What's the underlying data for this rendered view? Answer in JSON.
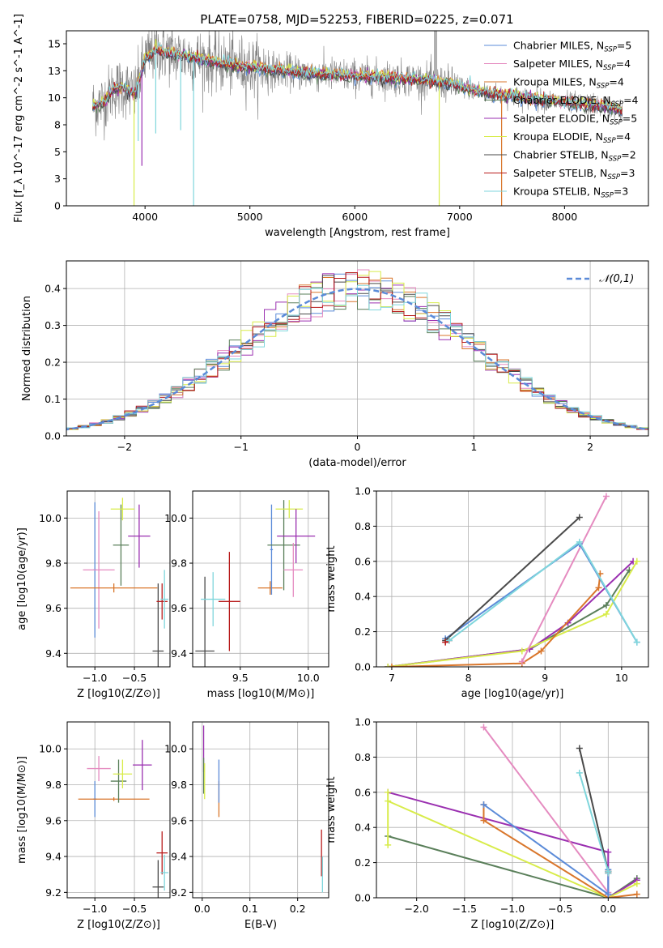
{
  "figure": {
    "title": "PLATE=0758, MJD=52253, FIBERID=0225, z=0.071"
  },
  "colors": {
    "Chabrier MILES": "#5b8bd8",
    "Salpeter MILES": "#e58bc0",
    "Kroupa MILES": "#d9762b",
    "Chabrier ELODIE": "#5a7f5a",
    "Salpeter ELODIE": "#9a2fb0",
    "Kroupa ELODIE": "#d8ec4a",
    "Chabrier STELIB": "#4a4a4a",
    "Salpeter STELIB": "#b81c1c",
    "Kroupa STELIB": "#7fd6dc",
    "data": "#808080",
    "normal": "#5b8bd8"
  },
  "chart_data": [
    {
      "type": "line",
      "title": "PLATE=0758, MJD=52253, FIBERID=0225, z=0.071",
      "xlabel": "wavelength [Angstrom, rest frame]",
      "ylabel": "Flux [f_λ 10^-17 erg cm^-2 s^-1 A^-1]",
      "xlim": [
        3250,
        8800
      ],
      "ylim": [
        0,
        16.2
      ],
      "xticks": [
        4000,
        5000,
        6000,
        7000,
        8000
      ],
      "yticks": [
        0.0,
        2.5,
        5.0,
        7.5,
        10.0,
        12.5,
        15.0
      ],
      "grid": false,
      "legend_position": "top-right",
      "legend": [
        {
          "name": "Chabrier MILES",
          "n": "5"
        },
        {
          "name": "Salpeter MILES",
          "n": "4"
        },
        {
          "name": "Kroupa MILES",
          "n": "4"
        },
        {
          "name": "Chabrier ELODIE",
          "n": "4"
        },
        {
          "name": "Salpeter ELODIE",
          "n": "5"
        },
        {
          "name": "Kroupa ELODIE",
          "n": "4"
        },
        {
          "name": "Chabrier STELIB",
          "n": "2"
        },
        {
          "name": "Salpeter STELIB",
          "n": "3"
        },
        {
          "name": "Kroupa STELIB",
          "n": "3"
        }
      ],
      "continuum_x": [
        3500,
        3600,
        3700,
        3800,
        3900,
        4000,
        4100,
        4300,
        4600,
        5000,
        5500,
        6000,
        6500,
        6900,
        7300,
        7600,
        8000,
        8400,
        8550
      ],
      "continuum_y": [
        9.2,
        9.6,
        10.8,
        11.0,
        10.2,
        13.6,
        14.4,
        14.0,
        13.4,
        12.8,
        12.3,
        12.0,
        11.8,
        11.3,
        10.4,
        10.0,
        9.6,
        9.2,
        8.8
      ],
      "dips": [
        {
          "x": 3895,
          "y": 0.0,
          "series": "Kroupa ELODIE"
        },
        {
          "x": 3935,
          "y": 6.0,
          "series": "Kroupa STELIB"
        },
        {
          "x": 3970,
          "y": 3.7,
          "series": "Salpeter ELODIE"
        },
        {
          "x": 4102,
          "y": 6.7,
          "series": "Kroupa STELIB"
        },
        {
          "x": 4340,
          "y": 7.0,
          "series": "Kroupa STELIB"
        },
        {
          "x": 4463,
          "y": 0.0,
          "series": "Kroupa STELIB"
        },
        {
          "x": 6805,
          "y": 0.0,
          "series": "Kroupa ELODIE"
        },
        {
          "x": 7400,
          "y": 0.0,
          "series": "Kroupa MILES"
        }
      ]
    },
    {
      "type": "line",
      "xlabel": "(data-model)/error",
      "ylabel": "Normed distribution",
      "xlim": [
        -2.5,
        2.5
      ],
      "ylim": [
        0,
        0.475
      ],
      "xticks": [
        -2,
        -1,
        0,
        1,
        2
      ],
      "yticks": [
        0.0,
        0.1,
        0.2,
        0.3,
        0.4
      ],
      "grid": true,
      "legend_position": "top-right",
      "legend": [
        "𝒩(0,1)"
      ],
      "bin_width": 0.1
    },
    {
      "type": "scatter",
      "xlabel": "Z [log10(Z/Z⊙)]",
      "ylabel": "age  [log10(age/yr)]",
      "xlim": [
        -1.35,
        -0.05
      ],
      "ylim": [
        9.34,
        10.12
      ],
      "xticks": [
        -1.0,
        -0.5
      ],
      "yticks": [
        9.4,
        9.6,
        9.8,
        10.0
      ],
      "grid": true,
      "points": [
        {
          "series": "Chabrier MILES",
          "x": -1.0,
          "xerr": 0.02,
          "y": 9.77,
          "yerr": 0.3
        },
        {
          "series": "Salpeter MILES",
          "x": -0.95,
          "xerr": 0.2,
          "y": 9.77,
          "yerr": 0.26
        },
        {
          "series": "Kroupa MILES",
          "x": -0.76,
          "xerr": 0.55,
          "y": 9.69,
          "yerr": 0.02
        },
        {
          "series": "Chabrier ELODIE",
          "x": -0.67,
          "xerr": 0.1,
          "y": 9.88,
          "yerr": 0.18
        },
        {
          "series": "Kroupa ELODIE",
          "x": -0.65,
          "xerr": 0.15,
          "y": 10.04,
          "yerr": 0.05
        },
        {
          "series": "Salpeter ELODIE",
          "x": -0.44,
          "xerr": 0.14,
          "y": 9.92,
          "yerr": 0.14
        },
        {
          "series": "Chabrier STELIB",
          "x": -0.2,
          "xerr": 0.07,
          "y": 9.41,
          "yerr": 0.3
        },
        {
          "series": "Salpeter STELIB",
          "x": -0.15,
          "xerr": 0.07,
          "y": 9.63,
          "yerr": 0.08
        },
        {
          "series": "Kroupa STELIB",
          "x": -0.12,
          "xerr": 0.05,
          "y": 9.64,
          "yerr": 0.13
        }
      ]
    },
    {
      "type": "scatter",
      "xlabel": "mass [log10(M/M⊙)]",
      "ylabel": "",
      "xlim": [
        9.15,
        10.15
      ],
      "ylim": [
        9.34,
        10.12
      ],
      "xticks": [
        9.5,
        10.0
      ],
      "yticks": [
        9.4,
        9.6,
        9.8,
        10.0
      ],
      "grid": true,
      "points": [
        {
          "series": "Chabrier STELIB",
          "x": 9.24,
          "xerr": 0.07,
          "y": 9.41,
          "yerr": 0.33
        },
        {
          "series": "Kroupa STELIB",
          "x": 9.3,
          "xerr": 0.09,
          "y": 9.64,
          "yerr": 0.12
        },
        {
          "series": "Salpeter STELIB",
          "x": 9.42,
          "xerr": 0.08,
          "y": 9.63,
          "yerr": 0.22
        },
        {
          "series": "Kroupa MILES",
          "x": 9.72,
          "xerr": 0.09,
          "y": 9.69,
          "yerr": 0.03
        },
        {
          "series": "Chabrier MILES",
          "x": 9.73,
          "xerr": 0.01,
          "y": 9.86,
          "yerr": 0.2
        },
        {
          "series": "Chabrier ELODIE",
          "x": 9.82,
          "xerr": 0.12,
          "y": 9.88,
          "yerr": 0.2
        },
        {
          "series": "Kroupa ELODIE",
          "x": 9.86,
          "xerr": 0.1,
          "y": 10.04,
          "yerr": 0.04
        },
        {
          "series": "Salpeter MILES",
          "x": 9.89,
          "xerr": 0.07,
          "y": 9.77,
          "yerr": 0.12
        },
        {
          "series": "Salpeter ELODIE",
          "x": 9.91,
          "xerr": 0.14,
          "y": 9.92,
          "yerr": 0.12
        }
      ]
    },
    {
      "type": "line",
      "xlabel": "age  [log10(age/yr)]",
      "ylabel": "mass weight",
      "xlim": [
        6.8,
        10.35
      ],
      "ylim": [
        0,
        1.0
      ],
      "xticks": [
        7,
        8,
        9,
        10
      ],
      "yticks": [
        0.0,
        0.2,
        0.4,
        0.6,
        0.8,
        1.0
      ],
      "grid": true,
      "series": [
        {
          "name": "Chabrier ELODIE",
          "points": [
            [
              6.95,
              0.0
            ],
            [
              8.8,
              0.1
            ],
            [
              9.8,
              0.35
            ],
            [
              10.1,
              0.55
            ]
          ]
        },
        {
          "name": "Salpeter ELODIE",
          "points": [
            [
              6.95,
              0.0
            ],
            [
              8.8,
              0.1
            ],
            [
              9.3,
              0.25
            ],
            [
              10.15,
              0.6
            ]
          ]
        },
        {
          "name": "Kroupa ELODIE",
          "points": [
            [
              6.95,
              0.0
            ],
            [
              8.7,
              0.09
            ],
            [
              9.8,
              0.3
            ],
            [
              10.2,
              0.6
            ]
          ]
        },
        {
          "name": "Kroupa MILES",
          "points": [
            [
              7.0,
              0.0
            ],
            [
              8.7,
              0.02
            ],
            [
              8.95,
              0.09
            ],
            [
              9.7,
              0.45
            ],
            [
              9.72,
              0.53
            ]
          ]
        },
        {
          "name": "Salpeter MILES",
          "points": [
            [
              8.7,
              0.03
            ],
            [
              9.8,
              0.97
            ]
          ]
        },
        {
          "name": "Chabrier MILES",
          "points": [
            [
              7.7,
              0.16
            ],
            [
              9.45,
              0.7
            ],
            [
              10.2,
              0.14
            ]
          ]
        },
        {
          "name": "Chabrier STELIB",
          "points": [
            [
              7.7,
              0.15
            ],
            [
              9.45,
              0.85
            ]
          ]
        },
        {
          "name": "Salpeter STELIB",
          "points": [
            [
              7.7,
              0.14
            ],
            [
              7.75,
              0.15
            ]
          ]
        },
        {
          "name": "Kroupa STELIB",
          "points": [
            [
              7.75,
              0.15
            ],
            [
              9.45,
              0.71
            ],
            [
              10.2,
              0.14
            ]
          ]
        }
      ]
    },
    {
      "type": "scatter",
      "xlabel": "Z [log10(Z/Z⊙)]",
      "ylabel": "mass [log10(M/M⊙)]",
      "xlim": [
        -1.35,
        -0.05
      ],
      "ylim": [
        9.17,
        10.15
      ],
      "xticks": [
        -1.0,
        -0.5
      ],
      "yticks": [
        9.2,
        9.4,
        9.6,
        9.8,
        10.0
      ],
      "grid": true,
      "points": [
        {
          "series": "Chabrier MILES",
          "x": -1.0,
          "xerr": 0.02,
          "y": 9.72,
          "yerr": 0.1
        },
        {
          "series": "Salpeter MILES",
          "x": -0.95,
          "xerr": 0.15,
          "y": 9.89,
          "yerr": 0.07
        },
        {
          "series": "Kroupa MILES",
          "x": -0.76,
          "xerr": 0.45,
          "y": 9.72,
          "yerr": 0.01
        },
        {
          "series": "Chabrier ELODIE",
          "x": -0.7,
          "xerr": 0.1,
          "y": 9.82,
          "yerr": 0.12
        },
        {
          "series": "Kroupa ELODIE",
          "x": -0.65,
          "xerr": 0.12,
          "y": 9.86,
          "yerr": 0.08
        },
        {
          "series": "Salpeter ELODIE",
          "x": -0.4,
          "xerr": 0.12,
          "y": 9.91,
          "yerr": 0.14
        },
        {
          "series": "Chabrier STELIB",
          "x": -0.2,
          "xerr": 0.07,
          "y": 9.23,
          "yerr": 0.15
        },
        {
          "series": "Salpeter STELIB",
          "x": -0.15,
          "xerr": 0.07,
          "y": 9.42,
          "yerr": 0.12
        },
        {
          "series": "Kroupa STELIB",
          "x": -0.12,
          "xerr": 0.05,
          "y": 9.31,
          "yerr": 0.1
        }
      ]
    },
    {
      "type": "scatter",
      "xlabel": "E(B-V)",
      "ylabel": "",
      "xlim": [
        -0.02,
        0.265
      ],
      "ylim": [
        9.17,
        10.15
      ],
      "xticks": [
        0.0,
        0.1,
        0.2
      ],
      "yticks": [
        9.2,
        9.4,
        9.6,
        9.8,
        10.0
      ],
      "grid": true,
      "points": [
        {
          "series": "Salpeter ELODIE",
          "x": 0.003,
          "y": 10.0,
          "yerr": 0.13
        },
        {
          "series": "Chabrier ELODIE",
          "x": 0.003,
          "y": 9.85,
          "yerr": 0.1
        },
        {
          "series": "Kroupa ELODIE",
          "x": 0.005,
          "y": 9.82,
          "yerr": 0.1
        },
        {
          "series": "Kroupa MILES",
          "x": 0.035,
          "y": 9.72,
          "yerr": 0.1
        },
        {
          "series": "Chabrier MILES",
          "x": 0.035,
          "y": 9.82,
          "yerr": 0.12
        },
        {
          "series": "Salpeter STELIB",
          "x": 0.25,
          "y": 9.42,
          "yerr": 0.13
        },
        {
          "series": "Kroupa STELIB",
          "x": 0.252,
          "y": 9.3,
          "yerr": 0.1
        }
      ]
    },
    {
      "type": "line",
      "xlabel": "Z [log10(Z/Z⊙)]",
      "ylabel": "mass weight",
      "xlim": [
        -2.42,
        0.42
      ],
      "ylim": [
        0,
        1.0
      ],
      "xticks": [
        -2.0,
        -1.5,
        -1.0,
        -0.5,
        0.0
      ],
      "yticks": [
        0.0,
        0.2,
        0.4,
        0.6,
        0.8,
        1.0
      ],
      "grid": true,
      "series": [
        {
          "name": "Chabrier ELODIE",
          "points": [
            [
              -2.3,
              0.35
            ],
            [
              0.0,
              0.0
            ],
            [
              0.3,
              0.11
            ]
          ]
        },
        {
          "name": "Salpeter ELODIE",
          "points": [
            [
              -2.3,
              0.6
            ],
            [
              0.0,
              0.26
            ],
            [
              0.0,
              0.0
            ],
            [
              0.3,
              0.1
            ]
          ]
        },
        {
          "name": "Kroupa ELODIE",
          "points": [
            [
              -2.3,
              0.6
            ],
            [
              -2.3,
              0.3
            ],
            [
              -2.3,
              0.55
            ],
            [
              0.0,
              0.0
            ],
            [
              0.3,
              0.08
            ]
          ]
        },
        {
          "name": "Kroupa MILES",
          "points": [
            [
              -1.3,
              0.53
            ],
            [
              -1.3,
              0.44
            ],
            [
              0.0,
              0.0
            ],
            [
              0.3,
              0.02
            ]
          ]
        },
        {
          "name": "Salpeter MILES",
          "points": [
            [
              -1.3,
              0.97
            ],
            [
              0.0,
              0.03
            ]
          ]
        },
        {
          "name": "Chabrier MILES",
          "points": [
            [
              -1.3,
              0.53
            ],
            [
              0.0,
              0.02
            ],
            [
              0.0,
              0.16
            ]
          ]
        },
        {
          "name": "Chabrier STELIB",
          "points": [
            [
              -0.3,
              0.85
            ],
            [
              0.0,
              0.15
            ]
          ]
        },
        {
          "name": "Salpeter STELIB",
          "points": [
            [
              0.0,
              0.14
            ],
            [
              0.0,
              0.15
            ]
          ]
        },
        {
          "name": "Kroupa STELIB",
          "points": [
            [
              -0.3,
              0.71
            ],
            [
              0.0,
              0.15
            ],
            [
              0.0,
              0.14
            ]
          ]
        }
      ]
    }
  ]
}
